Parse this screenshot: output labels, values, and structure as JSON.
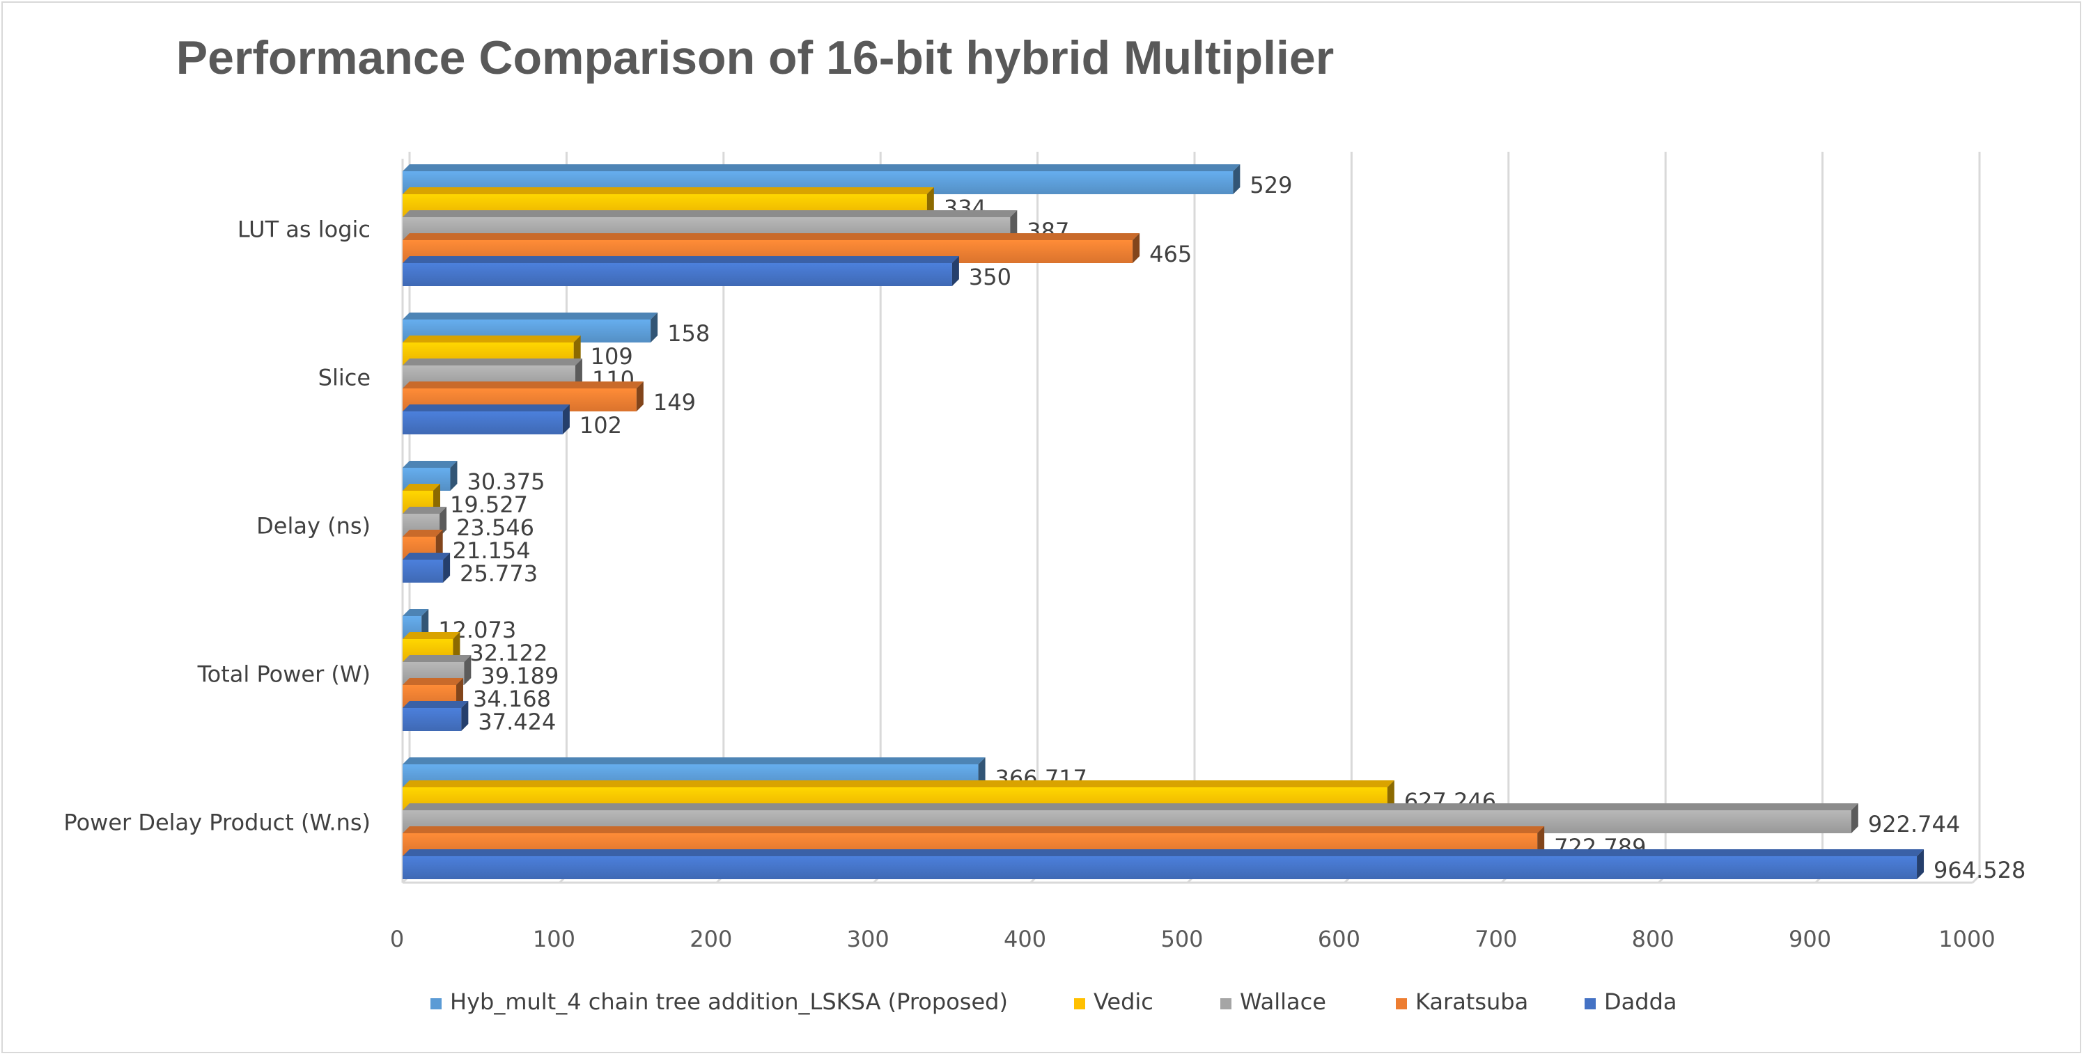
{
  "chart_data": {
    "type": "bar",
    "orientation": "horizontal",
    "title": "Performance Comparison of 16-bit hybrid Multiplier",
    "categories": [
      "LUT as logic",
      "Slice",
      "Delay (ns)",
      "Total Power (W)",
      "Power Delay Product (W.ns)"
    ],
    "series": [
      {
        "name": "Hyb_mult_4 chain tree addition_LSKSA (Proposed)",
        "color": "#5b9bd5",
        "values": [
          529,
          158,
          30.375,
          12.073,
          366.717
        ]
      },
      {
        "name": "Vedic",
        "color": "#ffc000",
        "values": [
          334,
          109,
          19.527,
          32.122,
          627.246
        ]
      },
      {
        "name": "Wallace",
        "color": "#a5a5a5",
        "values": [
          387,
          110,
          23.546,
          39.189,
          922.744
        ]
      },
      {
        "name": "Karatsuba",
        "color": "#ed7d31",
        "values": [
          465,
          149,
          21.154,
          34.168,
          722.789
        ]
      },
      {
        "name": "Dadda",
        "color": "#4472c4",
        "values": [
          350,
          102,
          25.773,
          37.424,
          964.528
        ]
      }
    ],
    "data_labels": [
      [
        "529",
        "158",
        "30.375",
        "12.073",
        "366.717"
      ],
      [
        "334",
        "109",
        "19.527",
        "32.122",
        "627.246"
      ],
      [
        "387",
        "110",
        "23.546",
        "39.189",
        "922.744"
      ],
      [
        "465",
        "149",
        "21.154",
        "34.168",
        "722.789"
      ],
      [
        "350",
        "102",
        "25.773",
        "37.424",
        "964.528"
      ]
    ],
    "xlim": [
      0,
      1000
    ],
    "xticks": [
      0,
      100,
      200,
      300,
      400,
      500,
      600,
      700,
      800,
      900,
      1000
    ],
    "xtick_labels": [
      "0",
      "100",
      "200",
      "300",
      "400",
      "500",
      "600",
      "700",
      "800",
      "900",
      "1000"
    ],
    "grid": true,
    "legend_position": "bottom",
    "style": "3d"
  }
}
